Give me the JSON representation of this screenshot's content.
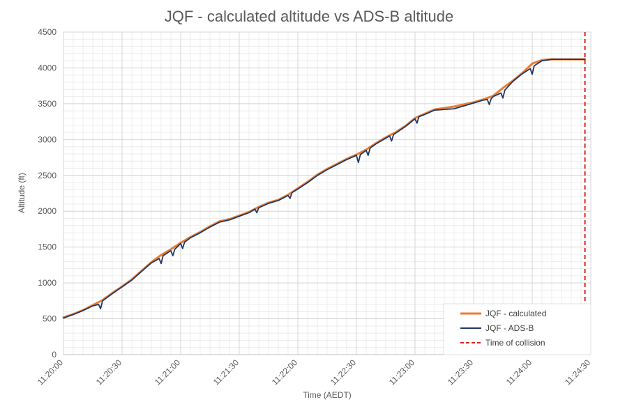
{
  "chart_data": {
    "type": "line",
    "title": "JQF - calculated altitude vs ADS-B altitude",
    "xlabel": "Time (AEDT)",
    "ylabel": "Altitude (ft)",
    "ylim": [
      0,
      4500
    ],
    "xlim": [
      "11:20:00",
      "11:24:30"
    ],
    "yticks": [
      0,
      500,
      1000,
      1500,
      2000,
      2500,
      3000,
      3500,
      4000,
      4500
    ],
    "xticks": [
      "11:20:00",
      "11:20:30",
      "11:21:00",
      "11:21:30",
      "11:22:00",
      "11:22:30",
      "11:23:00",
      "11:23:30",
      "11:24:00",
      "11:24:30"
    ],
    "grid": true,
    "legend_position": "bottom-right",
    "series": [
      {
        "name": "JQF - calculated",
        "color": "#ED7D31",
        "points": [
          [
            "11:20:00",
            520
          ],
          [
            "11:20:05",
            565
          ],
          [
            "11:20:10",
            620
          ],
          [
            "11:20:15",
            690
          ],
          [
            "11:20:20",
            760
          ],
          [
            "11:20:25",
            860
          ],
          [
            "11:20:30",
            950
          ],
          [
            "11:20:35",
            1050
          ],
          [
            "11:20:40",
            1170
          ],
          [
            "11:20:45",
            1290
          ],
          [
            "11:20:50",
            1390
          ],
          [
            "11:20:55",
            1470
          ],
          [
            "11:21:00",
            1560
          ],
          [
            "11:21:05",
            1640
          ],
          [
            "11:21:10",
            1710
          ],
          [
            "11:21:15",
            1790
          ],
          [
            "11:21:20",
            1860
          ],
          [
            "11:21:25",
            1890
          ],
          [
            "11:21:30",
            1940
          ],
          [
            "11:21:35",
            1990
          ],
          [
            "11:21:40",
            2060
          ],
          [
            "11:21:45",
            2120
          ],
          [
            "11:21:50",
            2160
          ],
          [
            "11:21:55",
            2230
          ],
          [
            "11:22:00",
            2320
          ],
          [
            "11:22:05",
            2410
          ],
          [
            "11:22:10",
            2510
          ],
          [
            "11:22:15",
            2590
          ],
          [
            "11:22:20",
            2660
          ],
          [
            "11:22:25",
            2730
          ],
          [
            "11:22:30",
            2790
          ],
          [
            "11:22:35",
            2860
          ],
          [
            "11:22:40",
            2950
          ],
          [
            "11:22:45",
            3030
          ],
          [
            "11:22:50",
            3100
          ],
          [
            "11:22:55",
            3190
          ],
          [
            "11:23:00",
            3300
          ],
          [
            "11:23:05",
            3360
          ],
          [
            "11:23:10",
            3420
          ],
          [
            "11:23:15",
            3440
          ],
          [
            "11:23:20",
            3460
          ],
          [
            "11:23:25",
            3490
          ],
          [
            "11:23:30",
            3520
          ],
          [
            "11:23:35",
            3560
          ],
          [
            "11:23:40",
            3610
          ],
          [
            "11:23:45",
            3720
          ],
          [
            "11:23:50",
            3820
          ],
          [
            "11:23:55",
            3930
          ],
          [
            "11:24:00",
            4060
          ],
          [
            "11:24:05",
            4110
          ],
          [
            "11:24:10",
            4120
          ],
          [
            "11:24:20",
            4120
          ],
          [
            "11:24:27",
            4120
          ]
        ]
      },
      {
        "name": "JQF - ADS-B",
        "color": "#1F3864",
        "points": [
          [
            "11:20:00",
            510
          ],
          [
            "11:20:05",
            560
          ],
          [
            "11:20:10",
            615
          ],
          [
            "11:20:15",
            680
          ],
          [
            "11:20:18",
            700
          ],
          [
            "11:20:19",
            640
          ],
          [
            "11:20:20",
            750
          ],
          [
            "11:20:25",
            850
          ],
          [
            "11:20:30",
            945
          ],
          [
            "11:20:35",
            1040
          ],
          [
            "11:20:40",
            1160
          ],
          [
            "11:20:45",
            1280
          ],
          [
            "11:20:49",
            1340
          ],
          [
            "11:20:50",
            1270
          ],
          [
            "11:20:51",
            1380
          ],
          [
            "11:20:55",
            1450
          ],
          [
            "11:20:56",
            1380
          ],
          [
            "11:20:57",
            1470
          ],
          [
            "11:21:00",
            1550
          ],
          [
            "11:21:01",
            1480
          ],
          [
            "11:21:02",
            1570
          ],
          [
            "11:21:05",
            1630
          ],
          [
            "11:21:10",
            1700
          ],
          [
            "11:21:15",
            1780
          ],
          [
            "11:21:20",
            1850
          ],
          [
            "11:21:25",
            1880
          ],
          [
            "11:21:30",
            1930
          ],
          [
            "11:21:35",
            1980
          ],
          [
            "11:21:38",
            2030
          ],
          [
            "11:21:39",
            1980
          ],
          [
            "11:21:40",
            2050
          ],
          [
            "11:21:45",
            2110
          ],
          [
            "11:21:50",
            2150
          ],
          [
            "11:21:55",
            2220
          ],
          [
            "11:21:56",
            2180
          ],
          [
            "11:21:57",
            2260
          ],
          [
            "11:22:00",
            2310
          ],
          [
            "11:22:05",
            2400
          ],
          [
            "11:22:10",
            2500
          ],
          [
            "11:22:15",
            2580
          ],
          [
            "11:22:20",
            2650
          ],
          [
            "11:22:25",
            2720
          ],
          [
            "11:22:30",
            2780
          ],
          [
            "11:22:31",
            2680
          ],
          [
            "11:22:32",
            2790
          ],
          [
            "11:22:35",
            2850
          ],
          [
            "11:22:36",
            2780
          ],
          [
            "11:22:37",
            2880
          ],
          [
            "11:22:40",
            2940
          ],
          [
            "11:22:45",
            3020
          ],
          [
            "11:22:47",
            3050
          ],
          [
            "11:22:48",
            2980
          ],
          [
            "11:22:49",
            3070
          ],
          [
            "11:22:55",
            3180
          ],
          [
            "11:23:00",
            3290
          ],
          [
            "11:23:01",
            3230
          ],
          [
            "11:23:02",
            3320
          ],
          [
            "11:23:05",
            3350
          ],
          [
            "11:23:10",
            3410
          ],
          [
            "11:23:15",
            3420
          ],
          [
            "11:23:20",
            3430
          ],
          [
            "11:23:25",
            3470
          ],
          [
            "11:23:30",
            3510
          ],
          [
            "11:23:35",
            3550
          ],
          [
            "11:23:37",
            3560
          ],
          [
            "11:23:38",
            3490
          ],
          [
            "11:23:39",
            3570
          ],
          [
            "11:23:40",
            3600
          ],
          [
            "11:23:44",
            3650
          ],
          [
            "11:23:45",
            3580
          ],
          [
            "11:23:46",
            3690
          ],
          [
            "11:23:50",
            3810
          ],
          [
            "11:23:55",
            3920
          ],
          [
            "11:23:59",
            3990
          ],
          [
            "11:24:00",
            3910
          ],
          [
            "11:24:01",
            4030
          ],
          [
            "11:24:05",
            4100
          ],
          [
            "11:24:10",
            4120
          ],
          [
            "11:24:20",
            4120
          ],
          [
            "11:24:27",
            4120
          ]
        ]
      },
      {
        "name": "Time of collision",
        "color": "#E02020",
        "style": "dashed",
        "x": "11:24:27"
      }
    ]
  }
}
